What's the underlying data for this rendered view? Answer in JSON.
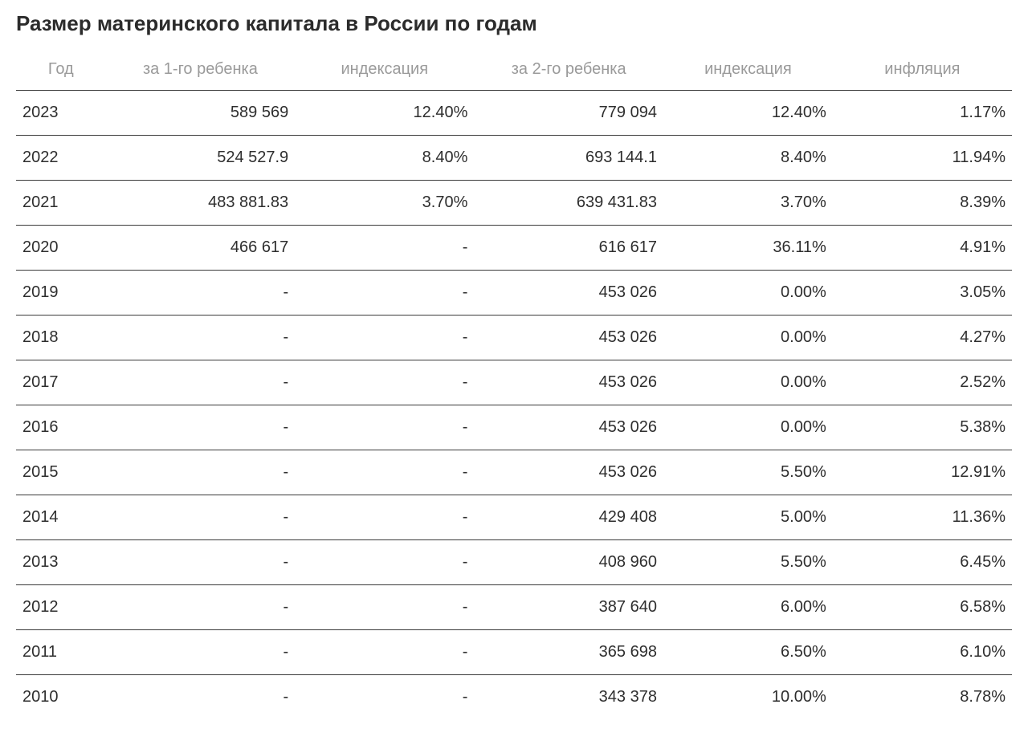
{
  "title": "Размер материнского капитала в России по годам",
  "table": {
    "type": "table",
    "background_color": "#ffffff",
    "header_color": "#9a9a9a",
    "body_color": "#2e2e2e",
    "border_color": "#3a3a3a",
    "title_fontsize": 26,
    "header_fontsize": 20,
    "cell_fontsize": 20,
    "columns": [
      {
        "key": "year",
        "label": "Год",
        "align": "left",
        "width": "9%"
      },
      {
        "key": "first_child",
        "label": "за 1-го ребенка",
        "align": "right",
        "width": "19%"
      },
      {
        "key": "index1",
        "label": "индексация",
        "align": "right",
        "width": "18%"
      },
      {
        "key": "second_child",
        "label": "за 2-го ребенка",
        "align": "right",
        "width": "19%"
      },
      {
        "key": "index2",
        "label": "индексация",
        "align": "right",
        "width": "17%"
      },
      {
        "key": "inflation",
        "label": "инфляция",
        "align": "right",
        "width": "18%"
      }
    ],
    "rows": [
      {
        "year": "2023",
        "first_child": "589 569",
        "index1": "12.40%",
        "second_child": "779 094",
        "index2": "12.40%",
        "inflation": "1.17%"
      },
      {
        "year": "2022",
        "first_child": "524 527.9",
        "index1": "8.40%",
        "second_child": "693 144.1",
        "index2": "8.40%",
        "inflation": "11.94%"
      },
      {
        "year": "2021",
        "first_child": "483 881.83",
        "index1": "3.70%",
        "second_child": "639 431.83",
        "index2": "3.70%",
        "inflation": "8.39%"
      },
      {
        "year": "2020",
        "first_child": "466 617",
        "index1": "-",
        "second_child": "616 617",
        "index2": "36.11%",
        "inflation": "4.91%"
      },
      {
        "year": "2019",
        "first_child": "-",
        "index1": "-",
        "second_child": "453 026",
        "index2": "0.00%",
        "inflation": "3.05%"
      },
      {
        "year": "2018",
        "first_child": "-",
        "index1": "-",
        "second_child": "453 026",
        "index2": "0.00%",
        "inflation": "4.27%"
      },
      {
        "year": "2017",
        "first_child": "-",
        "index1": "-",
        "second_child": "453 026",
        "index2": "0.00%",
        "inflation": "2.52%"
      },
      {
        "year": "2016",
        "first_child": "-",
        "index1": "-",
        "second_child": "453 026",
        "index2": "0.00%",
        "inflation": "5.38%"
      },
      {
        "year": "2015",
        "first_child": "-",
        "index1": "-",
        "second_child": "453 026",
        "index2": "5.50%",
        "inflation": "12.91%"
      },
      {
        "year": "2014",
        "first_child": "-",
        "index1": "-",
        "second_child": "429 408",
        "index2": "5.00%",
        "inflation": "11.36%"
      },
      {
        "year": "2013",
        "first_child": "-",
        "index1": "-",
        "second_child": "408 960",
        "index2": "5.50%",
        "inflation": "6.45%"
      },
      {
        "year": "2012",
        "first_child": "-",
        "index1": "-",
        "second_child": "387 640",
        "index2": "6.00%",
        "inflation": "6.58%"
      },
      {
        "year": "2011",
        "first_child": "-",
        "index1": "-",
        "second_child": "365 698",
        "index2": "6.50%",
        "inflation": "6.10%"
      },
      {
        "year": "2010",
        "first_child": "-",
        "index1": "-",
        "second_child": "343 378",
        "index2": "10.00%",
        "inflation": "8.78%"
      }
    ]
  }
}
